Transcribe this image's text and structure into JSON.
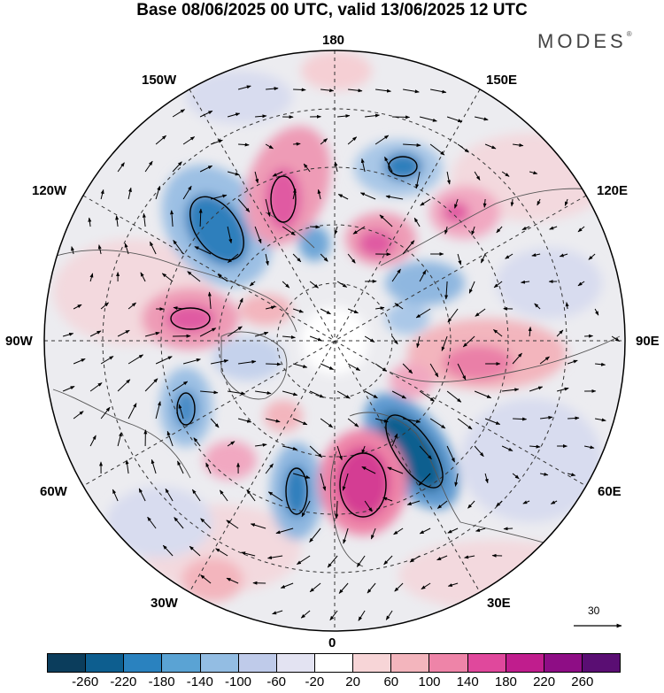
{
  "title": "Base 08/06/2025 00 UTC, valid 13/06/2025 12 UTC",
  "brand": "MODES",
  "brand_mark": "®",
  "longitude_labels": {
    "top": "180",
    "bottom": "0",
    "left": "90W",
    "right": "90E",
    "upper_left_1": "150W",
    "upper_left_2": "120W",
    "upper_right_1": "150E",
    "upper_right_2": "120E",
    "lower_left_1": "60W",
    "lower_left_2": "30W",
    "lower_right_1": "60E",
    "lower_right_2": "30E"
  },
  "wind_reference_vector": "30",
  "colorbar": {
    "colors": [
      "#0b3d5c",
      "#0d5e8f",
      "#2a82bf",
      "#5aa3d4",
      "#93bde3",
      "#bfcbea",
      "#e3e3f2",
      "#ffffff",
      "#f7d5d7",
      "#f3b5bd",
      "#ee84a8",
      "#e0489c",
      "#c01d8d",
      "#8e0d85",
      "#5a0e73"
    ],
    "tick_labels": [
      "-260",
      "-220",
      "-180",
      "-140",
      "-100",
      "-60",
      "-20",
      "20",
      "60",
      "100",
      "140",
      "180",
      "220",
      "260"
    ]
  },
  "anomaly_colors": {
    "strong_negative": "#1f6fa6",
    "negative": "#7fb0dc",
    "weak_negative": "#cfd6ee",
    "weak_positive": "#f5cfd4",
    "positive": "#ee9bb6",
    "strong_positive": "#d9479b"
  },
  "icons": [
    "reference-arrow-icon"
  ]
}
